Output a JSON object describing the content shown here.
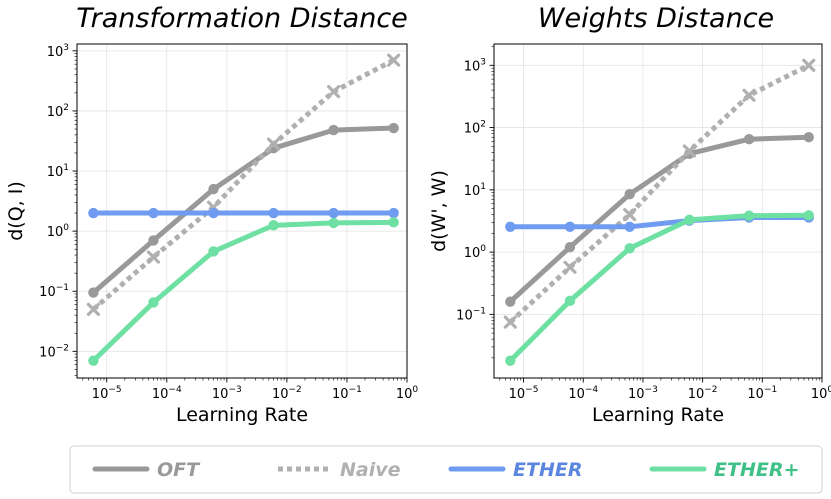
{
  "legend": {
    "entries": [
      {
        "name": "OFT",
        "color": "#999999",
        "style": "solid"
      },
      {
        "name": "Naive",
        "color": "#b0b0b0",
        "style": "dotted"
      },
      {
        "name": "ETHER",
        "color": "#6f9bf0",
        "style": "solid",
        "text_color": "#5b86e0"
      },
      {
        "name": "ETHER+",
        "color": "#6ee0a3",
        "style": "solid",
        "text_color": "#3fc087"
      }
    ]
  },
  "chart_data": [
    {
      "type": "line",
      "title": "Transformation Distance",
      "xlabel": "Learning Rate",
      "ylabel": "d(Q, I)",
      "xscale": "log",
      "yscale": "log",
      "xlim": [
        3.2e-06,
        1.0
      ],
      "ylim": [
        0.0036,
        1300
      ],
      "xticks": [
        {
          "base": "10",
          "exp": "−5",
          "value": 1e-05
        },
        {
          "base": "10",
          "exp": "−4",
          "value": 0.0001
        },
        {
          "base": "10",
          "exp": "−3",
          "value": 0.001
        },
        {
          "base": "10",
          "exp": "−2",
          "value": 0.01
        },
        {
          "base": "10",
          "exp": "−1",
          "value": 0.1
        },
        {
          "base": "10",
          "exp": "0",
          "value": 1
        }
      ],
      "yticks": [
        {
          "base": "10",
          "exp": "−2",
          "value": 0.01
        },
        {
          "base": "10",
          "exp": "−1",
          "value": 0.1
        },
        {
          "base": "10",
          "exp": "0",
          "value": 1
        },
        {
          "base": "10",
          "exp": "1",
          "value": 10
        },
        {
          "base": "10",
          "exp": "2",
          "value": 100
        },
        {
          "base": "10",
          "exp": "3",
          "value": 1000
        }
      ],
      "x": [
        6e-06,
        6e-05,
        0.0006,
        0.006,
        0.06,
        0.6
      ],
      "series": [
        {
          "name": "OFT",
          "values": [
            0.095,
            0.7,
            5.0,
            24,
            48,
            52
          ]
        },
        {
          "name": "Naive",
          "values": [
            0.05,
            0.37,
            2.5,
            28,
            210,
            700
          ]
        },
        {
          "name": "ETHER",
          "values": [
            2.0,
            2.0,
            2.0,
            2.0,
            2.0,
            2.0
          ]
        },
        {
          "name": "ETHER+",
          "values": [
            0.007,
            0.065,
            0.46,
            1.25,
            1.37,
            1.4
          ]
        }
      ]
    },
    {
      "type": "line",
      "title": "Weights Distance",
      "xlabel": "Learning Rate",
      "ylabel": "d(W', W)",
      "xscale": "log",
      "yscale": "log",
      "xlim": [
        3.2e-06,
        1.0
      ],
      "ylim": [
        0.0095,
        2200
      ],
      "xticks": [
        {
          "base": "10",
          "exp": "−5",
          "value": 1e-05
        },
        {
          "base": "10",
          "exp": "−4",
          "value": 0.0001
        },
        {
          "base": "10",
          "exp": "−3",
          "value": 0.001
        },
        {
          "base": "10",
          "exp": "−2",
          "value": 0.01
        },
        {
          "base": "10",
          "exp": "−1",
          "value": 0.1
        },
        {
          "base": "10",
          "exp": "0",
          "value": 1
        }
      ],
      "yticks": [
        {
          "base": "10",
          "exp": "−1",
          "value": 0.1
        },
        {
          "base": "10",
          "exp": "0",
          "value": 1
        },
        {
          "base": "10",
          "exp": "1",
          "value": 10
        },
        {
          "base": "10",
          "exp": "2",
          "value": 100
        },
        {
          "base": "10",
          "exp": "3",
          "value": 1000
        }
      ],
      "x": [
        6e-06,
        6e-05,
        0.0006,
        0.006,
        0.06,
        0.6
      ],
      "series": [
        {
          "name": "OFT",
          "values": [
            0.16,
            1.2,
            8.5,
            38,
            65,
            70
          ]
        },
        {
          "name": "Naive",
          "values": [
            0.075,
            0.57,
            4.0,
            42,
            330,
            1000
          ]
        },
        {
          "name": "ETHER",
          "values": [
            2.55,
            2.55,
            2.55,
            3.2,
            3.6,
            3.6
          ]
        },
        {
          "name": "ETHER+",
          "values": [
            0.018,
            0.165,
            1.15,
            3.3,
            3.85,
            3.9
          ]
        }
      ]
    }
  ]
}
